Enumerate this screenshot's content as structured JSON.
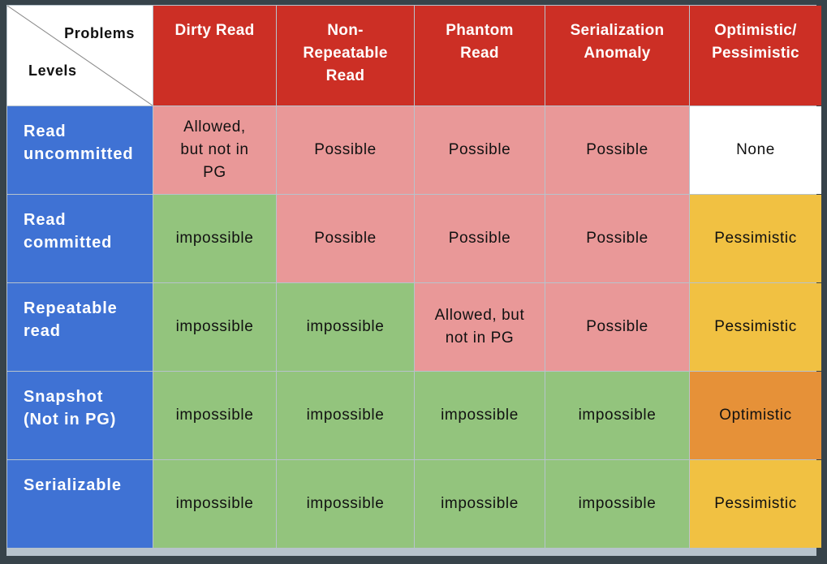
{
  "corner": {
    "problems_label": "Problems",
    "levels_label": "Levels"
  },
  "headers": [
    "Dirty Read",
    "Non-\nRepeatable\nRead",
    "Phantom\nRead",
    "Serialization\nAnomaly",
    "Optimistic/\nPessimistic"
  ],
  "rows": [
    {
      "level": "Read\nuncommitted",
      "cells": [
        "Allowed,\nbut not in\nPG",
        "Possible",
        "Possible",
        "Possible",
        "None"
      ]
    },
    {
      "level": "Read\ncommitted",
      "cells": [
        "impossible",
        "Possible",
        "Possible",
        "Possible",
        "Pessimistic"
      ]
    },
    {
      "level": "Repeatable\nread",
      "cells": [
        "impossible",
        "impossible",
        "Allowed, but\nnot in PG",
        "Possible",
        "Pessimistic"
      ]
    },
    {
      "level": "Snapshot\n(Not in PG)",
      "cells": [
        "impossible",
        "impossible",
        "impossible",
        "impossible",
        "Optimistic"
      ]
    },
    {
      "level": "Serializable",
      "cells": [
        "impossible",
        "impossible",
        "impossible",
        "impossible",
        "Pessimistic"
      ]
    }
  ],
  "colors": {
    "header_bg": "#cc2f25",
    "level_bg": "#3f72d4",
    "possible_bg": "#e99898",
    "impossible_bg": "#93c47d",
    "none_bg": "#ffffff",
    "pessimistic_bg": "#f1c142",
    "optimistic_bg": "#e69138",
    "page_bg": "#37434a"
  }
}
